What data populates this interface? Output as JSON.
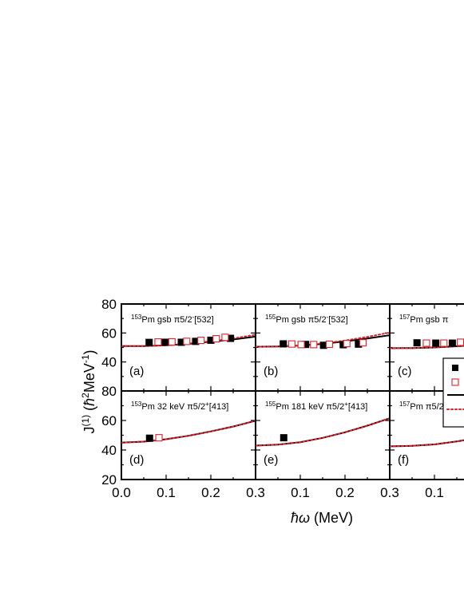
{
  "chart_data": {
    "type": "scatter",
    "xlabel": "ħω (MeV)",
    "ylabel": "J(1) (ħ2MeV-1)",
    "ylabel_parts": {
      "main": "J",
      "sup1": "(1)",
      "open": " (",
      "hbar": "ħ",
      "sup2": "2",
      "unit": "MeV",
      "sup3": "-1",
      "close": ")"
    },
    "xlabel_parts": {
      "symbol": "ħω",
      "unit": " (MeV)"
    },
    "xlim": [
      0.0,
      0.3
    ],
    "xticks": [
      "0.0",
      "0.1",
      "0.2",
      "0.3"
    ],
    "top_row": {
      "ylim": [
        20,
        80
      ],
      "yticks": [
        "40",
        "60",
        "80"
      ]
    },
    "bottom_row": {
      "ylim": [
        20,
        80
      ],
      "yticks": [
        "20",
        "40",
        "60",
        "80"
      ]
    },
    "legend": {
      "placement": "right, partially cropped",
      "markers": [
        "filled-square",
        "open-square",
        "solid-line",
        "dotted-line"
      ]
    },
    "colors": {
      "exp_filled": "#000000",
      "exp_open": "#e0202a",
      "theory_solid": "#000000",
      "theory_dotted": "#e0202a"
    },
    "panels": [
      {
        "label": "(a)",
        "title": {
          "mass": "153",
          "text1": "Pm gsb π5/2",
          "sup": "-",
          "text2": "[532]"
        },
        "filled": [
          [
            0.062,
            53.5
          ],
          [
            0.098,
            53.6
          ],
          [
            0.134,
            53.6
          ],
          [
            0.166,
            54.2
          ],
          [
            0.2,
            55.0
          ],
          [
            0.244,
            56.3
          ]
        ],
        "open": [
          [
            0.082,
            53.8
          ],
          [
            0.113,
            53.9
          ],
          [
            0.146,
            54.2
          ],
          [
            0.178,
            54.9
          ],
          [
            0.212,
            56.0
          ],
          [
            0.232,
            57.0
          ]
        ],
        "solid": [
          [
            0.0,
            51.0
          ],
          [
            0.05,
            51.0
          ],
          [
            0.1,
            51.5
          ],
          [
            0.15,
            52.5
          ],
          [
            0.2,
            54.0
          ],
          [
            0.25,
            55.5
          ],
          [
            0.3,
            57.5
          ]
        ],
        "dotted": [
          [
            0.0,
            51.0
          ],
          [
            0.05,
            51.0
          ],
          [
            0.1,
            51.5
          ],
          [
            0.15,
            52.7
          ],
          [
            0.2,
            54.3
          ],
          [
            0.25,
            56.2
          ],
          [
            0.3,
            58.8
          ]
        ]
      },
      {
        "label": "(b)",
        "title": {
          "mass": "155",
          "text1": "Pm gsb π5/2",
          "sup": "-",
          "text2": "[532]"
        },
        "filled": [
          [
            0.062,
            52.5
          ],
          [
            0.112,
            52.1
          ],
          [
            0.152,
            51.5
          ],
          [
            0.196,
            51.9
          ],
          [
            0.23,
            52.3
          ]
        ],
        "open": [
          [
            0.081,
            52.4
          ],
          [
            0.102,
            52.0
          ],
          [
            0.13,
            52.0
          ],
          [
            0.165,
            52.2
          ],
          [
            0.204,
            52.7
          ],
          [
            0.24,
            53.2
          ]
        ],
        "solid": [
          [
            0.0,
            50.5
          ],
          [
            0.05,
            50.7
          ],
          [
            0.1,
            51.3
          ],
          [
            0.15,
            52.5
          ],
          [
            0.2,
            54.2
          ],
          [
            0.25,
            56.2
          ],
          [
            0.3,
            58.5
          ]
        ],
        "dotted": [
          [
            0.0,
            50.5
          ],
          [
            0.05,
            50.7
          ],
          [
            0.1,
            51.4
          ],
          [
            0.15,
            52.8
          ],
          [
            0.2,
            54.8
          ],
          [
            0.25,
            57.3
          ],
          [
            0.3,
            60.3
          ]
        ]
      },
      {
        "label": "(c)",
        "title": {
          "mass": "157",
          "text1": "Pm gsb π",
          "sup": "",
          "text2": ""
        },
        "filled": [
          [
            0.061,
            53.2
          ],
          [
            0.103,
            53.0
          ],
          [
            0.14,
            53.0
          ]
        ],
        "open": [
          [
            0.082,
            53.0
          ],
          [
            0.121,
            53.0
          ],
          [
            0.158,
            53.6
          ]
        ],
        "solid": [
          [
            0.0,
            49.5
          ],
          [
            0.05,
            49.6
          ],
          [
            0.1,
            50.0
          ],
          [
            0.15,
            50.8
          ],
          [
            0.2,
            52.0
          ],
          [
            0.25,
            53.6
          ],
          [
            0.3,
            55.6
          ]
        ],
        "dotted": [
          [
            0.0,
            49.5
          ],
          [
            0.05,
            49.6
          ],
          [
            0.1,
            50.1
          ],
          [
            0.15,
            51.0
          ],
          [
            0.2,
            52.4
          ],
          [
            0.25,
            54.2
          ],
          [
            0.3,
            56.4
          ]
        ]
      },
      {
        "label": "(d)",
        "title": {
          "mass": "153",
          "text1": "Pm 32 keV π5/2",
          "sup": "+",
          "text2": "[413]"
        },
        "filled": [
          [
            0.063,
            48.0
          ]
        ],
        "open": [
          [
            0.084,
            48.3
          ]
        ],
        "solid": [
          [
            0.0,
            45.0
          ],
          [
            0.05,
            45.7
          ],
          [
            0.1,
            47.3
          ],
          [
            0.15,
            49.6
          ],
          [
            0.2,
            52.6
          ],
          [
            0.25,
            55.9
          ],
          [
            0.3,
            59.8
          ]
        ],
        "dotted": [
          [
            0.0,
            45.0
          ],
          [
            0.05,
            45.7
          ],
          [
            0.1,
            47.3
          ],
          [
            0.15,
            49.6
          ],
          [
            0.2,
            52.6
          ],
          [
            0.25,
            55.9
          ],
          [
            0.3,
            59.8
          ]
        ]
      },
      {
        "label": "(e)",
        "title": {
          "mass": "155",
          "text1": "Pm 181 keV π5/2",
          "sup": "+",
          "text2": "[413]"
        },
        "filled": [
          [
            0.063,
            48.3
          ]
        ],
        "open": [],
        "solid": [
          [
            0.0,
            43.0
          ],
          [
            0.05,
            43.7
          ],
          [
            0.1,
            45.3
          ],
          [
            0.15,
            48.2
          ],
          [
            0.2,
            52.0
          ],
          [
            0.25,
            56.5
          ],
          [
            0.3,
            61.5
          ]
        ],
        "dotted": [
          [
            0.0,
            43.0
          ],
          [
            0.05,
            43.7
          ],
          [
            0.1,
            45.3
          ],
          [
            0.15,
            48.2
          ],
          [
            0.2,
            52.0
          ],
          [
            0.25,
            56.5
          ],
          [
            0.3,
            61.5
          ]
        ]
      },
      {
        "label": "(f)",
        "title": {
          "mass": "157",
          "text1": "Pm π5/2",
          "sup": "",
          "text2": ""
        },
        "filled": [],
        "open": [],
        "solid": [
          [
            0.0,
            42.5
          ],
          [
            0.05,
            42.8
          ],
          [
            0.1,
            43.8
          ],
          [
            0.15,
            45.8
          ],
          [
            0.2,
            48.5
          ]
        ],
        "dotted": [
          [
            0.0,
            42.5
          ],
          [
            0.05,
            42.8
          ],
          [
            0.1,
            43.8
          ],
          [
            0.15,
            45.8
          ],
          [
            0.2,
            48.5
          ]
        ]
      }
    ]
  }
}
